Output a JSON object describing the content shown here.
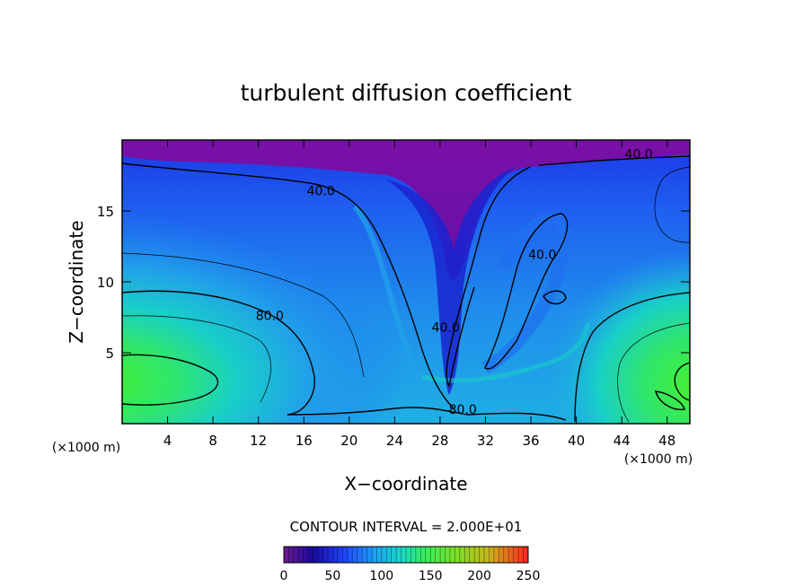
{
  "chart_data": {
    "type": "heatmap",
    "title": "turbulent diffusion coefficient",
    "xlabel": "X−coordinate",
    "ylabel": "Z−coordinate",
    "x_unit_left": "(×1000 m)",
    "x_unit_right": "(×1000 m)",
    "xlim": [
      0,
      50
    ],
    "ylim": [
      0,
      20
    ],
    "x_ticks": [
      4,
      8,
      12,
      16,
      20,
      24,
      28,
      32,
      36,
      40,
      44,
      48
    ],
    "y_ticks": [
      5,
      10,
      15
    ],
    "grid": false,
    "contour_interval_text": "CONTOUR INTERVAL = 2.000E+01",
    "contour_labels": [
      {
        "text": "40.0",
        "x": 17.5,
        "z": 16.1
      },
      {
        "text": "40.0",
        "x": 45.5,
        "z": 18.7
      },
      {
        "text": "40.0",
        "x": 37.0,
        "z": 11.6
      },
      {
        "text": "40.0",
        "x": 28.5,
        "z": 6.5
      },
      {
        "text": "80.0",
        "x": 13.0,
        "z": 7.3
      },
      {
        "text": "80.0",
        "x": 30.0,
        "z": 0.7
      }
    ],
    "colorbar": {
      "min": 0,
      "max": 250,
      "ticks": [
        0,
        50,
        100,
        150,
        200,
        250
      ],
      "colormap": [
        "#6a1a8e",
        "#1a0a9e",
        "#1e46ff",
        "#1ea6f0",
        "#19d8c8",
        "#38ee5a",
        "#7ae02a",
        "#c8b41c",
        "#ff2020"
      ]
    },
    "field_colors": {
      "top_low": "#7a10a8",
      "deep_blue": "#1a30e0",
      "blue": "#1f5cf2",
      "sky": "#21a2e8",
      "teal": "#18cfc8",
      "green": "#2fe66e",
      "bright_green": "#4cf22a"
    }
  }
}
